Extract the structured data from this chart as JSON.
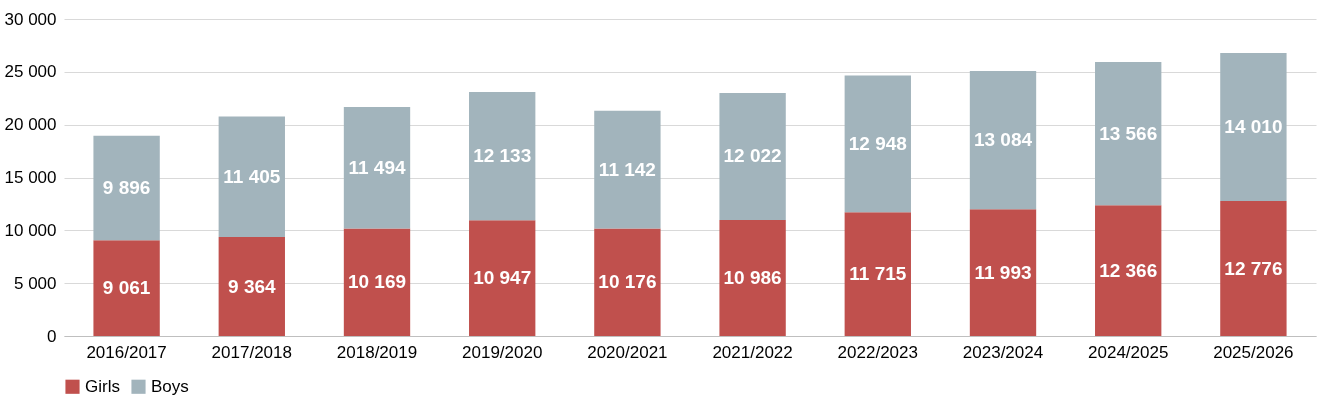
{
  "chart_data": {
    "type": "bar",
    "stacked": true,
    "data_labels": true,
    "grid": "y",
    "legend": "bottom",
    "categories": [
      "2016/2017",
      "2017/2018",
      "2018/2019",
      "2019/2020",
      "2020/2021",
      "2021/2022",
      "2022/2023",
      "2023/2024",
      "2024/2025",
      "2025/2026"
    ],
    "ylim": [
      0,
      30000
    ],
    "yticks": [
      0,
      5000,
      10000,
      15000,
      20000,
      25000,
      30000
    ],
    "series": [
      {
        "name": "Girls",
        "color": "#c0504d",
        "values": [
          9061,
          9364,
          10169,
          10947,
          10176,
          10986,
          11715,
          11993,
          12366,
          12776
        ]
      },
      {
        "name": "Boys",
        "color": "#a2b4bc",
        "values": [
          9896,
          11405,
          11494,
          12133,
          11142,
          12022,
          12948,
          13084,
          13566,
          14010
        ]
      }
    ]
  }
}
